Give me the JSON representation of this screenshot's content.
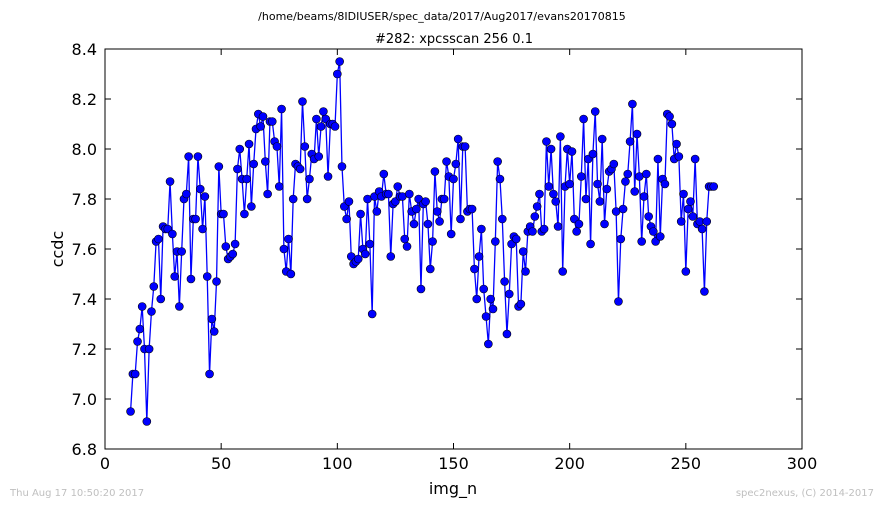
{
  "figure": {
    "suptitle": "/home/beams/8IDIUSER/spec_data/2017/Aug2017/evans20170815",
    "footer_left": "Thu Aug 17 10:50:20 2017",
    "footer_right": "spec2nexus, (C) 2014-2017"
  },
  "colors": {
    "series": "#0000ff",
    "series_marker": "#0000cc",
    "axes": "#000000",
    "footer": "#bfbfbf"
  },
  "chart_data": {
    "type": "line",
    "title": "#282: xpcsscan 256 0.1",
    "xlabel": "img_n",
    "ylabel": "ccdc",
    "xlim": [
      0,
      300
    ],
    "ylim": [
      6.8,
      8.4
    ],
    "xticks": [
      0,
      50,
      100,
      150,
      200,
      250,
      300
    ],
    "yticks": [
      6.8,
      7.0,
      7.2,
      7.4,
      7.6,
      7.8,
      8.0,
      8.2,
      8.4
    ],
    "xtick_labels": [
      "0",
      "50",
      "100",
      "150",
      "200",
      "250",
      "300"
    ],
    "ytick_labels": [
      "6.8",
      "7.0",
      "7.2",
      "7.4",
      "7.6",
      "7.8",
      "8.0",
      "8.2",
      "8.4"
    ],
    "grid": false,
    "marker": "circle",
    "x_start": 11,
    "x_step": 1,
    "series": [
      {
        "values": [
          6.95,
          7.1,
          7.1,
          7.23,
          7.28,
          7.37,
          7.2,
          6.91,
          7.2,
          7.35,
          7.45,
          7.63,
          7.64,
          7.4,
          7.69,
          7.68,
          7.68,
          7.87,
          7.66,
          7.49,
          7.59,
          7.37,
          7.59,
          7.8,
          7.82,
          7.97,
          7.48,
          7.72,
          7.72,
          7.97,
          7.84,
          7.68,
          7.81,
          7.49,
          7.1,
          7.32,
          7.27,
          7.47,
          7.93,
          7.74,
          7.74,
          7.61,
          7.56,
          7.57,
          7.58,
          7.62,
          7.92,
          8.0,
          7.88,
          7.74,
          7.88,
          8.02,
          7.77,
          7.94,
          8.08,
          8.14,
          8.09,
          8.13,
          7.95,
          7.82,
          8.11,
          8.11,
          8.03,
          8.01,
          7.85,
          8.16,
          7.6,
          7.51,
          7.64,
          7.5,
          7.8,
          7.94,
          7.93,
          7.92,
          8.19,
          8.01,
          7.8,
          7.88,
          7.98,
          7.96,
          8.12,
          7.97,
          8.09,
          8.15,
          8.12,
          7.89,
          8.1,
          8.1,
          8.09,
          8.3,
          8.35,
          7.93,
          7.77,
          7.72,
          7.79,
          7.57,
          7.54,
          7.55,
          7.56,
          7.74,
          7.6,
          7.58,
          7.8,
          7.62,
          7.34,
          7.81,
          7.75,
          7.83,
          7.81,
          7.9,
          7.82,
          7.82,
          7.57,
          7.78,
          7.79,
          7.85,
          7.81,
          7.81,
          7.64,
          7.61,
          7.82,
          7.75,
          7.7,
          7.76,
          7.8,
          7.44,
          7.78,
          7.79,
          7.7,
          7.52,
          7.63,
          7.91,
          7.75,
          7.71,
          7.8,
          7.8,
          7.95,
          7.89,
          7.66,
          7.88,
          7.94,
          8.04,
          7.72,
          8.01,
          8.01,
          7.75,
          7.76,
          7.76,
          7.52,
          7.4,
          7.57,
          7.68,
          7.44,
          7.33,
          7.22,
          7.4,
          7.36,
          7.63,
          7.95,
          7.88,
          7.72,
          7.47,
          7.26,
          7.42,
          7.62,
          7.65,
          7.64,
          7.37,
          7.38,
          7.59,
          7.51,
          7.67,
          7.69,
          7.67,
          7.73,
          7.77,
          7.82,
          7.67,
          7.68,
          8.03,
          7.85,
          8.0,
          7.82,
          7.79,
          7.69,
          8.05,
          7.51,
          7.85,
          8.0,
          7.86,
          7.99,
          7.72,
          7.67,
          7.7,
          7.89,
          8.12,
          7.8,
          7.96,
          7.62,
          7.98,
          8.15,
          7.86,
          7.79,
          8.04,
          7.7,
          7.84,
          7.91,
          7.92,
          7.94,
          7.75,
          7.39,
          7.64,
          7.76,
          7.87,
          7.9,
          8.03,
          8.18,
          7.83,
          8.06,
          7.89,
          7.63,
          7.81,
          7.9,
          7.73,
          7.69,
          7.67,
          7.63,
          7.96,
          7.65,
          7.88,
          7.86,
          8.14,
          8.13,
          8.1,
          7.96,
          8.02,
          7.97,
          7.71,
          7.82,
          7.51,
          7.76,
          7.79,
          7.73,
          7.96,
          7.7,
          7.71,
          7.68,
          7.43,
          7.71,
          7.85,
          7.85,
          7.85
        ]
      }
    ]
  }
}
